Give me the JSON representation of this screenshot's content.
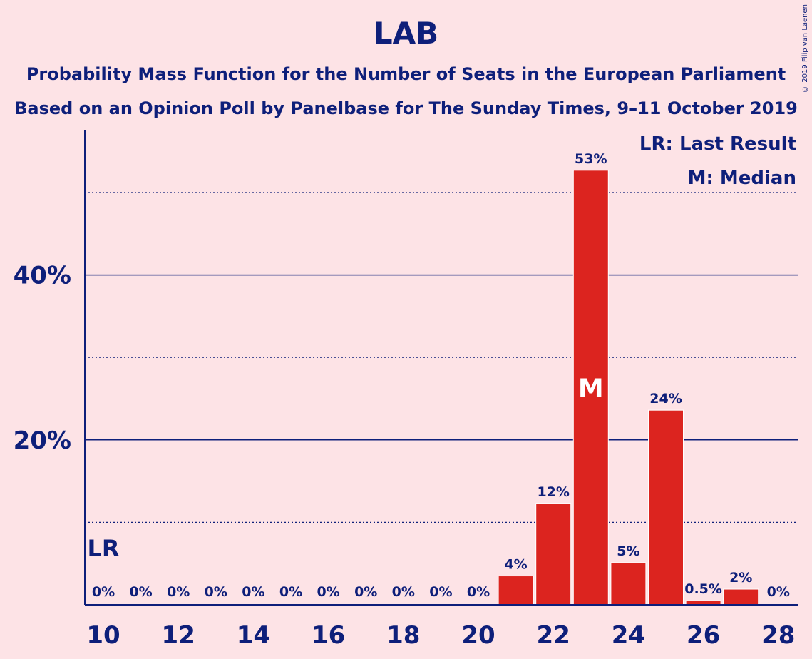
{
  "title": "LAB",
  "subtitle_1": "Probability Mass Function for the Number of Seats in the European Parliament",
  "subtitle_2": "Based on an Opinion Poll by Panelbase for The Sunday Times, 9–11 October 2019",
  "copyright": "© 2019 Filip van Laenen",
  "colors": {
    "background": "#fde3e6",
    "bar": "#dc241f",
    "text": "#0e1f7a"
  },
  "chart_data": {
    "type": "bar",
    "x": [
      10,
      11,
      12,
      13,
      14,
      15,
      16,
      17,
      18,
      19,
      20,
      21,
      22,
      23,
      24,
      25,
      26,
      27,
      28
    ],
    "values": [
      0,
      0,
      0,
      0,
      0,
      0,
      0,
      0,
      0,
      0,
      0,
      3.5,
      12.3,
      52.7,
      5.1,
      23.6,
      0.5,
      1.9,
      0
    ],
    "data_labels": [
      "0%",
      "0%",
      "0%",
      "0%",
      "0%",
      "0%",
      "0%",
      "0%",
      "0%",
      "0%",
      "0%",
      "4%",
      "12%",
      "53%",
      "5%",
      "24%",
      "0.5%",
      "2%",
      "0%"
    ],
    "x_tick_labels": [
      "10",
      "12",
      "14",
      "16",
      "18",
      "20",
      "22",
      "24",
      "26",
      "28"
    ],
    "y_ticks": [
      {
        "value": 20,
        "label": "20%"
      },
      {
        "value": 40,
        "label": "40%"
      }
    ],
    "y_dotted_gridlines": [
      10,
      30,
      50
    ],
    "ylim": [
      0,
      57.5
    ],
    "last_result": {
      "seat": 10,
      "label": "LR"
    },
    "median": {
      "seat": 23,
      "label": "M"
    },
    "legend": [
      "LR: Last Result",
      "M: Median"
    ],
    "legend_position": "top-right",
    "xlabel": "",
    "ylabel": ""
  }
}
